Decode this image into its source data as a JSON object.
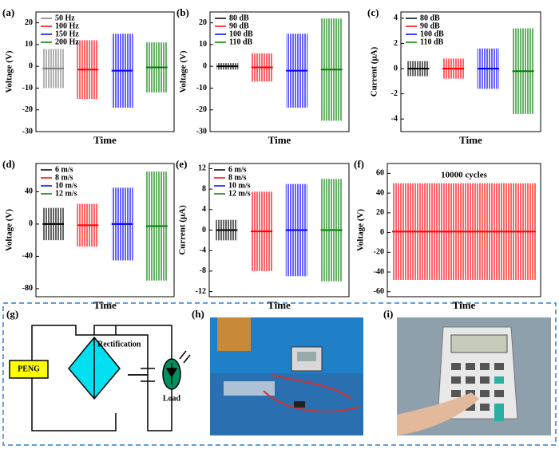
{
  "chart_data": [
    {
      "type": "range",
      "label": "(a)",
      "ylabel": "Voltage (V)",
      "xlabel": "Time",
      "ylim": [
        -30,
        25
      ],
      "yticks": [
        -30,
        -20,
        -10,
        0,
        10,
        20
      ],
      "series": [
        {
          "name": "50 Hz",
          "color": "#808080",
          "values": [
            -10,
            8
          ]
        },
        {
          "name": "100 Hz",
          "color": "#ff0000",
          "values": [
            -15,
            12
          ]
        },
        {
          "name": "150 Hz",
          "color": "#0000ff",
          "values": [
            -19,
            15
          ]
        },
        {
          "name": "200 Hz",
          "color": "#008000",
          "values": [
            -12,
            11
          ]
        }
      ]
    },
    {
      "type": "range",
      "label": "(b)",
      "ylabel": "Voltage (V)",
      "xlabel": "Time",
      "ylim": [
        -30,
        25
      ],
      "yticks": [
        -30,
        -20,
        -10,
        0,
        10,
        20
      ],
      "series": [
        {
          "name": "80 dB",
          "color": "#000000",
          "values": [
            -1.5,
            1.5
          ]
        },
        {
          "name": "90 dB",
          "color": "#ff0000",
          "values": [
            -7,
            6
          ]
        },
        {
          "name": "100 dB",
          "color": "#0000ff",
          "values": [
            -19,
            15
          ]
        },
        {
          "name": "110 dB",
          "color": "#008000",
          "values": [
            -25,
            22
          ]
        }
      ]
    },
    {
      "type": "range",
      "label": "(c)",
      "ylabel": "Current (μA)",
      "xlabel": "Time",
      "ylim": [
        -5,
        4.5
      ],
      "yticks": [
        -4,
        -2,
        0,
        2,
        4
      ],
      "series": [
        {
          "name": "80 dB",
          "color": "#000000",
          "values": [
            -0.6,
            0.6
          ]
        },
        {
          "name": "90 dB",
          "color": "#ff0000",
          "values": [
            -0.8,
            0.8
          ]
        },
        {
          "name": "100 dB",
          "color": "#0000ff",
          "values": [
            -1.6,
            1.6
          ]
        },
        {
          "name": "110 dB",
          "color": "#008000",
          "values": [
            -3.6,
            3.2
          ]
        }
      ]
    },
    {
      "type": "range",
      "label": "(d)",
      "ylabel": "Voltage (V)",
      "xlabel": "Time",
      "ylim": [
        -90,
        75
      ],
      "yticks": [
        -80,
        -40,
        0,
        40
      ],
      "series": [
        {
          "name": "6 m/s",
          "color": "#000000",
          "values": [
            -20,
            20
          ]
        },
        {
          "name": "8 m/s",
          "color": "#ff0000",
          "values": [
            -28,
            25
          ]
        },
        {
          "name": "10 m/s",
          "color": "#0000ff",
          "values": [
            -45,
            45
          ]
        },
        {
          "name": "12 m/s",
          "color": "#008000",
          "values": [
            -70,
            65
          ]
        }
      ]
    },
    {
      "type": "range",
      "label": "(e)",
      "ylabel": "Current (μA)",
      "xlabel": "Time",
      "ylim": [
        -13,
        13
      ],
      "yticks": [
        -12,
        -8,
        -4,
        0,
        4,
        8,
        12
      ],
      "series": [
        {
          "name": "6 m/s",
          "color": "#000000",
          "values": [
            -2,
            2
          ]
        },
        {
          "name": "8 m/s",
          "color": "#ff0000",
          "values": [
            -8,
            7.5
          ]
        },
        {
          "name": "10 m/s",
          "color": "#0000ff",
          "values": [
            -9,
            9
          ]
        },
        {
          "name": "12 m/s",
          "color": "#008000",
          "values": [
            -10,
            10
          ]
        }
      ]
    },
    {
      "type": "range",
      "label": "(f)",
      "ylabel": "Voltage (V)",
      "xlabel": "Time",
      "ylim": [
        -65,
        70
      ],
      "yticks": [
        -60,
        -40,
        -20,
        0,
        20,
        40,
        60
      ],
      "annotation": "10000 cycles",
      "series": [
        {
          "color": "#ff0000",
          "values": [
            -48,
            50
          ]
        }
      ]
    }
  ],
  "diagram": {
    "label": "(g)",
    "source": "PENG",
    "bridge": "Rectification",
    "load": "Load"
  },
  "photos": [
    {
      "label": "(h)"
    },
    {
      "label": "(i)"
    }
  ]
}
